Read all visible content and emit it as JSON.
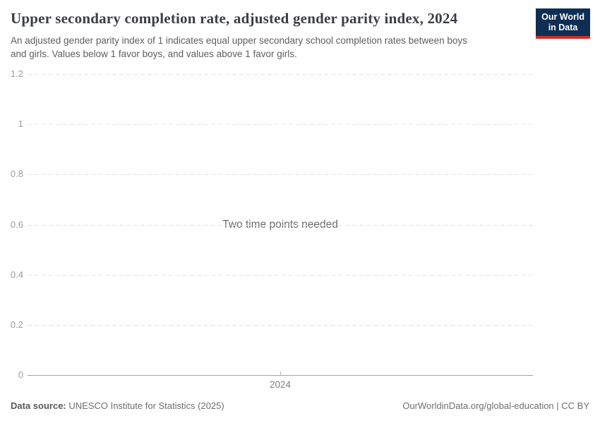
{
  "header": {
    "title": "Upper secondary completion rate, adjusted gender parity index, 2024",
    "subtitle_line1": "An adjusted gender parity index of 1 indicates equal upper secondary school completion rates between boys",
    "subtitle_line2": "and girls. Values below 1 favor boys, and values above 1 favor girls.",
    "logo": {
      "line1": "Our World",
      "line2": "in Data",
      "background_color": "#0f2e54",
      "stripe_color": "#d42b23"
    }
  },
  "chart_data": {
    "type": "line",
    "title": "Upper secondary completion rate, adjusted gender parity index, 2024",
    "series": [],
    "empty_message": "Two time points needed",
    "ylim": [
      0,
      1.2
    ],
    "y_ticks": [
      {
        "value": 0,
        "label": "0"
      },
      {
        "value": 0.2,
        "label": "0.2"
      },
      {
        "value": 0.4,
        "label": "0.4"
      },
      {
        "value": 0.6,
        "label": "0.6"
      },
      {
        "value": 0.8,
        "label": "0.8"
      },
      {
        "value": 1,
        "label": "1"
      },
      {
        "value": 1.2,
        "label": "1.2"
      }
    ],
    "x_ticks": [
      {
        "label": "2024",
        "x_frac": 0.5
      }
    ],
    "grid": true,
    "gridline_color": "#e3e3e3",
    "axis_color": "#a3a3a3"
  },
  "footer": {
    "source_label": "Data source:",
    "source_text": " UNESCO Institute for Statistics (2025)",
    "credit": "OurWorldinData.org/global-education | CC BY"
  }
}
